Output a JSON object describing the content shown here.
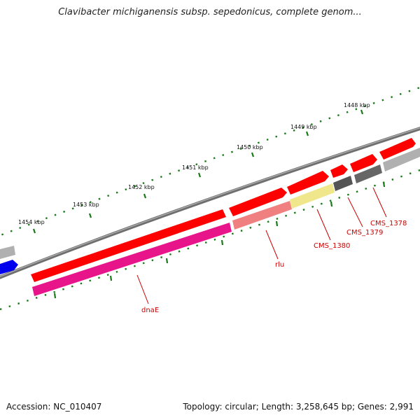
{
  "title": "Clavibacter michiganensis subsp. sepedonicus, complete genom...",
  "accession": "Accession: NC_010407",
  "summary": "Topology: circular; Length: 3,258,645 bp; Genes: 2,991",
  "ruler_ticks": [
    {
      "label": "1448 kbp"
    },
    {
      "label": "1449 kbp"
    },
    {
      "label": "1450 kbp"
    },
    {
      "label": "1451 kbp"
    },
    {
      "label": "1452 kbp"
    },
    {
      "label": "1453 kbp"
    },
    {
      "label": "1454 kbp"
    }
  ],
  "gene_labels": [
    {
      "name": "dnaE"
    },
    {
      "name": "rlu"
    },
    {
      "name": "CMS_1380"
    },
    {
      "name": "CMS_1379"
    },
    {
      "name": "CMS_1378"
    }
  ],
  "colors": {
    "cds_forward": "#ff0000",
    "dnaE_feature": "#e8158a",
    "rlu_feature": "#f08080",
    "cms1380_feature": "#f0e68c",
    "cms1379_feature": "#555555",
    "cms1378_feature": "#999999",
    "blue_feature": "#0000ee",
    "backbone": "#777777",
    "tick": "#1a7a1a",
    "label": "#cc0000"
  }
}
